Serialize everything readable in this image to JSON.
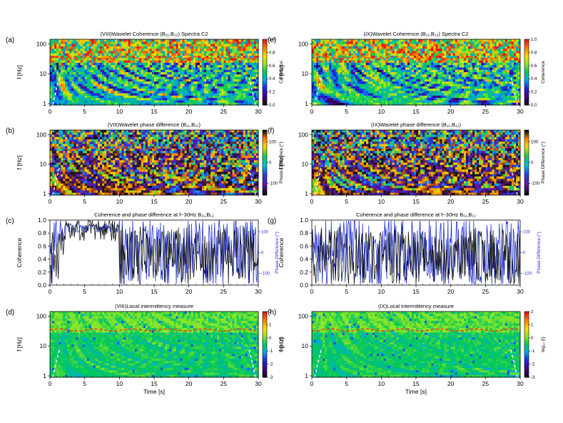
{
  "colors": {
    "axis": "#000000",
    "blue_line": "#1f2fd0",
    "black_line": "#111111",
    "ridge": "#ff3a1a",
    "coi": "#ffffff",
    "phase_text": "#2a2ad8"
  },
  "chart_data": [
    {
      "id": "a",
      "type": "heatmap",
      "panel_label": "(a)",
      "title": "(VIII)Wavelet Coherence (B₁₁,B₁₂) Spectra C2",
      "title_html": "(VIII)Wavelet Coherence (B<tspan dy='2' font-size='6'>11</tspan><tspan dy='-2'>,B</tspan><tspan dy='2' font-size='6'>12</tspan><tspan dy='-2'>) Spectra C2</tspan>",
      "ylabel": "f [Hz]",
      "xlabel": "",
      "xlim": [
        0,
        30
      ],
      "yticks": [
        "1",
        "10",
        "100"
      ],
      "xticks": [
        "0",
        "5",
        "10",
        "15",
        "20",
        "25",
        "30"
      ],
      "colorbar": {
        "label": "Coherence",
        "ticks": [
          "0.0",
          "0.2",
          "0.4",
          "0.6",
          "0.8",
          "1.0"
        ],
        "scale": "rainbow"
      }
    },
    {
      "id": "b",
      "type": "heatmap",
      "panel_label": "(b)",
      "title": "(VIII)Wavelet phase difference (B₁₁,B₁₂)",
      "ylabel": "f [Hz]",
      "xlabel": "",
      "xlim": [
        0,
        30
      ],
      "yticks": [
        "1",
        "10",
        "100"
      ],
      "xticks": [
        "0",
        "5",
        "10",
        "15",
        "20",
        "25",
        "30"
      ],
      "colorbar": {
        "label": "Phase Difference (°)",
        "ticks": [
          "-100",
          "0",
          "100"
        ],
        "scale": "phase"
      }
    },
    {
      "id": "c",
      "type": "line",
      "panel_label": "(c)",
      "title": "Coherence and phase difference at f~30Hz B₁₁,B₁₂",
      "ylabel": "Coherence",
      "y2label": "Phase Difference (°)",
      "xlim": [
        0,
        30
      ],
      "ylim": [
        0,
        1
      ],
      "yticks": [
        "0.0",
        "0.2",
        "0.4",
        "0.6",
        "0.8",
        "1.0"
      ],
      "y2ticks": [
        "-100",
        "0",
        "100"
      ],
      "xticks": [
        "0",
        "5",
        "10",
        "15",
        "20",
        "25",
        "30"
      ],
      "series": [
        {
          "name": "Coherence",
          "color": "black"
        },
        {
          "name": "Phase Difference",
          "color": "blue"
        }
      ]
    },
    {
      "id": "d",
      "type": "heatmap",
      "panel_label": "(d)",
      "title": "(VIII)Local intermittency measure",
      "ylabel": "f [Hz]",
      "xlabel": "Time [s]",
      "xlim": [
        0,
        30
      ],
      "yticks": [
        "1",
        "10",
        "100"
      ],
      "xticks": [
        "0",
        "5",
        "10",
        "15",
        "20",
        "25",
        "30"
      ],
      "colorbar": {
        "label": "log₁₀ (I)",
        "ticks": [
          "-3",
          "-2",
          "-1",
          "0",
          "1",
          "2"
        ],
        "scale": "lim"
      }
    },
    {
      "id": "e",
      "type": "heatmap",
      "panel_label": "(e)",
      "title": "(IX)Wavelet Coherence (B₁₁,B₁₂) Spectra C2",
      "ylabel": "f [Hz]",
      "xlabel": "",
      "xlim": [
        0,
        30
      ],
      "yticks": [
        "1",
        "10",
        "100"
      ],
      "xticks": [
        "0",
        "5",
        "10",
        "15",
        "20",
        "25",
        "30"
      ],
      "colorbar": {
        "label": "Coherence",
        "ticks": [
          "0.0",
          "0.2",
          "0.4",
          "0.6",
          "0.8",
          "1.0"
        ],
        "scale": "rainbow"
      }
    },
    {
      "id": "f",
      "type": "heatmap",
      "panel_label": "(f)",
      "title": "(IX)Wavelet phase difference (B₁₁,B₁₂)",
      "ylabel": "f [Hz]",
      "xlabel": "",
      "xlim": [
        0,
        30
      ],
      "yticks": [
        "1",
        "10",
        "100"
      ],
      "xticks": [
        "0",
        "5",
        "10",
        "15",
        "20",
        "25",
        "30"
      ],
      "colorbar": {
        "label": "Phase Difference (°)",
        "ticks": [
          "-100",
          "0",
          "100"
        ],
        "scale": "phase"
      }
    },
    {
      "id": "g",
      "type": "line",
      "panel_label": "(g)",
      "title": "Coherence and phase difference at f~30Hz B₁₁,B₁₂",
      "ylabel": "Coherence",
      "y2label": "Phase Difference (°)",
      "xlim": [
        0,
        30
      ],
      "ylim": [
        0,
        1
      ],
      "yticks": [
        "0.0",
        "0.2",
        "0.4",
        "0.6",
        "0.8",
        "1.0"
      ],
      "y2ticks": [
        "-100",
        "0",
        "100"
      ],
      "xticks": [
        "0",
        "5",
        "10",
        "15",
        "20",
        "25",
        "30"
      ],
      "series": [
        {
          "name": "Coherence",
          "color": "black"
        },
        {
          "name": "Phase Difference",
          "color": "blue"
        }
      ]
    },
    {
      "id": "h",
      "type": "heatmap",
      "panel_label": "(h)",
      "title": "(IX)Local intermittency measure",
      "ylabel": "f [Hz]",
      "xlabel": "Time [s]",
      "xlim": [
        0,
        30
      ],
      "yticks": [
        "1",
        "10",
        "100"
      ],
      "xticks": [
        "0",
        "5",
        "10",
        "15",
        "20",
        "25",
        "30"
      ],
      "colorbar": {
        "label": "log₁₀ (I)",
        "ticks": [
          "-3",
          "-2",
          "-1",
          "0",
          "1",
          "2"
        ],
        "scale": "lim"
      }
    }
  ]
}
